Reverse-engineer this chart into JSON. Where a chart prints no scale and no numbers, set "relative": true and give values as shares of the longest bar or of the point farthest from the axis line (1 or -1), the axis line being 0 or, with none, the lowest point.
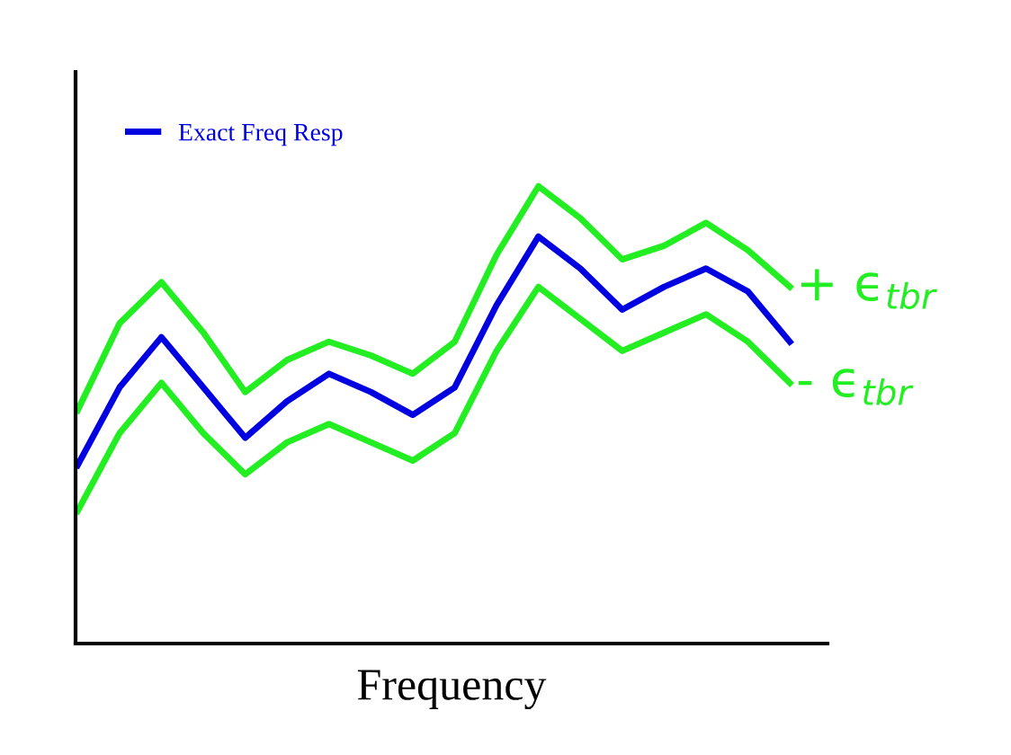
{
  "chart_data": {
    "type": "line",
    "xlabel": "Frequency",
    "relative": true,
    "legend": "top left",
    "categories": [
      null,
      null,
      null,
      null,
      null,
      null,
      null,
      null,
      null,
      null,
      null,
      null,
      null,
      null,
      null,
      null,
      null,
      null
    ],
    "series": [
      {
        "name": "Exact Freq Resp",
        "color": "#0000e0",
        "values": [
          0.39,
          0.56,
          0.67,
          0.56,
          0.45,
          0.53,
          0.59,
          0.55,
          0.5,
          0.56,
          0.74,
          0.89,
          0.82,
          0.73,
          0.78,
          0.82,
          0.77,
          0.66
        ]
      },
      {
        "name": "+ ϵ$_{tbr}$",
        "color": "#22ee22",
        "values": [
          0.51,
          0.7,
          0.79,
          0.68,
          0.55,
          0.62,
          0.66,
          0.63,
          0.59,
          0.66,
          0.85,
          1.0,
          0.93,
          0.84,
          0.87,
          0.92,
          0.86,
          0.78
        ]
      },
      {
        "name": "- ϵ$_{tbr}$",
        "color": "#22ee22",
        "values": [
          0.29,
          0.46,
          0.57,
          0.46,
          0.37,
          0.44,
          0.48,
          0.44,
          0.4,
          0.46,
          0.64,
          0.78,
          0.71,
          0.64,
          0.68,
          0.72,
          0.66,
          0.57
        ]
      }
    ]
  }
}
